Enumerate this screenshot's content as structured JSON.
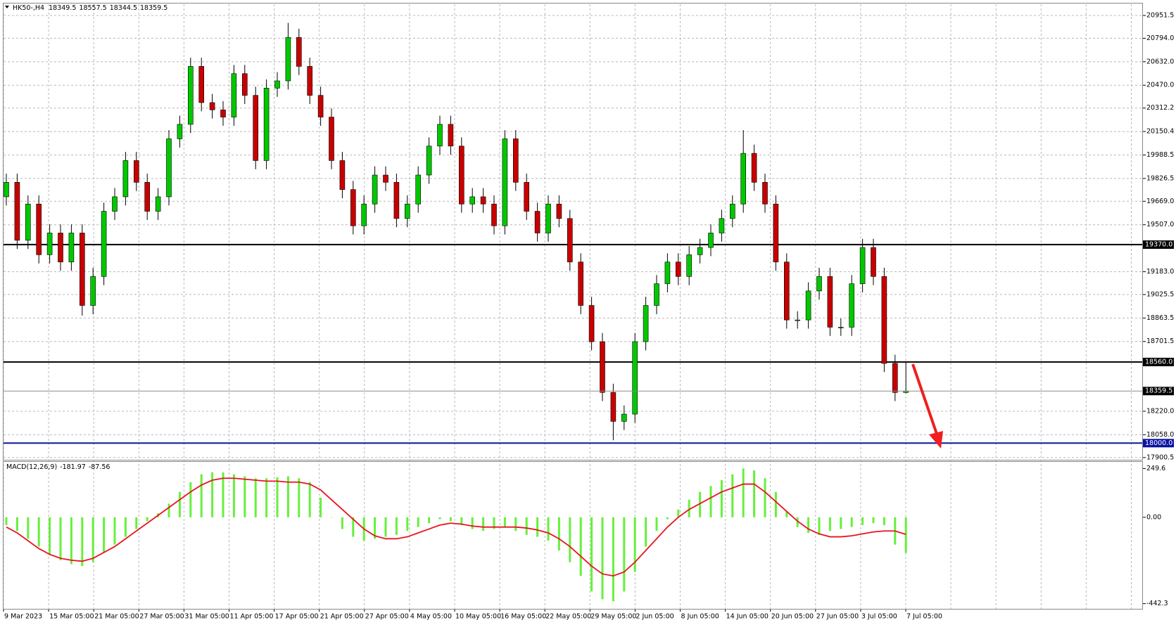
{
  "chart_data": [
    {
      "type": "candlestick",
      "title": "HK50-,H4",
      "open": [
        19700,
        19800,
        19400,
        19650,
        19300,
        19450,
        19250,
        19450,
        18950,
        19150,
        19600,
        19700,
        19950,
        19800,
        19600,
        19700,
        20100,
        20200,
        20600,
        20350,
        20300,
        20250,
        20550,
        20400,
        19950,
        20450,
        20500,
        20800,
        20600,
        20400,
        20250,
        19950,
        19750,
        19500,
        19650,
        19850,
        19800,
        19550,
        19650,
        19850,
        20050,
        20200,
        20050,
        19650,
        19700,
        19650,
        19500,
        20100,
        19800,
        19600,
        19450,
        19650,
        19550,
        19250,
        18950,
        18700,
        18350,
        18150,
        18200,
        18700,
        18950,
        19100,
        19250,
        19150,
        19300,
        19350,
        19450,
        19550,
        19650,
        20000,
        19800,
        19650,
        19250,
        18850,
        18850,
        19050,
        19150,
        18800,
        18800,
        19100,
        19350,
        19150,
        18550,
        18349.5
      ],
      "high": [
        19860,
        19860,
        19710,
        19710,
        19510,
        19510,
        19510,
        19510,
        19210,
        19660,
        19760,
        20010,
        20010,
        19860,
        19760,
        20160,
        20260,
        20660,
        20660,
        20410,
        20360,
        20610,
        20610,
        20460,
        20510,
        20560,
        20900,
        20860,
        20660,
        20460,
        20310,
        20010,
        19810,
        19710,
        19910,
        19910,
        19860,
        19710,
        19910,
        20110,
        20260,
        20260,
        20110,
        19760,
        19760,
        19710,
        20160,
        20160,
        19860,
        19660,
        19710,
        19710,
        19610,
        19310,
        19010,
        18760,
        18410,
        18260,
        18760,
        19010,
        19160,
        19310,
        19310,
        19360,
        19410,
        19510,
        19610,
        19710,
        20160,
        20060,
        19860,
        19710,
        19310,
        18910,
        19110,
        19210,
        19210,
        18860,
        19160,
        19410,
        19410,
        19210,
        18610,
        18557.5
      ],
      "low": [
        19640,
        19340,
        19340,
        19240,
        19240,
        19190,
        19190,
        18880,
        18890,
        19090,
        19540,
        19640,
        19740,
        19540,
        19540,
        19640,
        20040,
        20140,
        20290,
        20240,
        20190,
        20190,
        20340,
        19890,
        19890,
        20390,
        20440,
        20540,
        20340,
        20190,
        19890,
        19690,
        19440,
        19440,
        19590,
        19740,
        19490,
        19490,
        19590,
        19790,
        19990,
        19990,
        19590,
        19590,
        19590,
        19440,
        19440,
        19740,
        19540,
        19390,
        19390,
        19490,
        19190,
        18890,
        18640,
        18290,
        18020,
        18090,
        18140,
        18640,
        18890,
        19040,
        19090,
        19090,
        19240,
        19290,
        19390,
        19490,
        19590,
        19740,
        19590,
        19190,
        18790,
        18790,
        18790,
        18990,
        18740,
        18740,
        18740,
        19040,
        19090,
        18490,
        18290,
        18344.5
      ],
      "close": [
        19800,
        19400,
        19650,
        19300,
        19450,
        19250,
        19450,
        18950,
        19150,
        19600,
        19700,
        19950,
        19800,
        19600,
        19700,
        20100,
        20200,
        20600,
        20350,
        20300,
        20250,
        20550,
        20400,
        19950,
        20450,
        20500,
        20800,
        20600,
        20400,
        20250,
        19950,
        19750,
        19500,
        19650,
        19850,
        19800,
        19550,
        19650,
        19850,
        20050,
        20200,
        20050,
        19650,
        19700,
        19650,
        19500,
        20100,
        19800,
        19600,
        19450,
        19650,
        19550,
        19250,
        18950,
        18700,
        18350,
        18150,
        18200,
        18700,
        18950,
        19100,
        19250,
        19150,
        19300,
        19350,
        19450,
        19550,
        19650,
        20000,
        19800,
        19650,
        19250,
        18850,
        18850,
        19050,
        19150,
        18800,
        18800,
        19100,
        19350,
        19150,
        18550,
        18349.5,
        18359.5
      ],
      "up_color": "#00c800",
      "down_color": "#c80000",
      "ylim": [
        17885,
        21029
      ],
      "yticks": [
        20951.5,
        {
          "value": 20794,
          "label": "20794.0"
        },
        {
          "value": 20632,
          "label": "20632.0"
        },
        {
          "value": 20470,
          "label": "20470.0"
        },
        20312.2,
        20150.4,
        19988.5,
        19826.5,
        {
          "value": 19669,
          "label": "19669.0"
        },
        {
          "value": 19507,
          "label": "19507.0"
        },
        {
          "value": 19183,
          "label": "19183.0"
        },
        19025.5,
        18863.5,
        18701.5,
        {
          "value": 18220,
          "label": "18220.0"
        },
        {
          "value": 18058,
          "label": "18058.0"
        },
        17900.5
      ],
      "levels": [
        {
          "value": 19370,
          "label": "19370.0",
          "color": "#000000"
        },
        {
          "value": 18560,
          "label": "18560.0",
          "color": "#000000"
        },
        {
          "value": 18000,
          "label": "18000.0",
          "color": "#0a14a0"
        }
      ],
      "time_labels": [
        "9 Mar 2023",
        "15 Mar 05:00",
        "21 Mar 05:00",
        "27 Mar 05:00",
        "31 Mar 05:00",
        "11 Apr 05:00",
        "17 Apr 05:00",
        "21 Apr 05:00",
        "27 Apr 05:00",
        "4 May 05:00",
        "10 May 05:00",
        "16 May 05:00",
        "22 May 05:00",
        "29 May 05:00",
        "2 Jun 05:00",
        "8 Jun 05:00",
        "14 Jun 05:00",
        "20 Jun 05:00",
        "27 Jun 05:00",
        "3 Jul 05:00",
        "7 Jul 05:00"
      ],
      "grid": true
    },
    {
      "type": "macd",
      "title": "MACD(12,26,9)",
      "histogram": {
        "color": "#66f03c",
        "values": [
          -40,
          -70,
          -110,
          -150,
          -190,
          -220,
          -240,
          -250,
          -230,
          -180,
          -140,
          -100,
          -60,
          -20,
          20,
          70,
          130,
          180,
          220,
          230,
          230,
          220,
          210,
          200,
          200,
          205,
          210,
          200,
          180,
          100,
          0,
          -60,
          -100,
          -120,
          -110,
          -100,
          -90,
          -70,
          -50,
          -30,
          -10,
          -20,
          -40,
          -60,
          -70,
          -60,
          -50,
          -70,
          -90,
          -100,
          -120,
          -170,
          -230,
          -300,
          -380,
          -420,
          -430,
          -380,
          -280,
          -150,
          -70,
          -10,
          40,
          90,
          130,
          160,
          190,
          220,
          250,
          240,
          200,
          130,
          30,
          -50,
          -80,
          -90,
          -70,
          -60,
          -50,
          -40,
          -30,
          -40,
          -140,
          -181.97
        ]
      },
      "signal": {
        "color": "#e8141e",
        "values": [
          -50,
          -80,
          -120,
          -160,
          -190,
          -210,
          -220,
          -225,
          -210,
          -180,
          -150,
          -110,
          -70,
          -30,
          10,
          50,
          90,
          130,
          165,
          190,
          200,
          200,
          195,
          190,
          185,
          185,
          180,
          180,
          170,
          140,
          90,
          40,
          -10,
          -60,
          -95,
          -110,
          -110,
          -100,
          -80,
          -60,
          -40,
          -30,
          -35,
          -45,
          -50,
          -50,
          -50,
          -50,
          -55,
          -65,
          -80,
          -110,
          -150,
          -200,
          -250,
          -290,
          -300,
          -280,
          -230,
          -170,
          -110,
          -50,
          0,
          40,
          70,
          100,
          130,
          150,
          170,
          170,
          130,
          80,
          30,
          -20,
          -60,
          -85,
          -100,
          -100,
          -95,
          -85,
          -75,
          -70,
          -70,
          -87.56
        ]
      },
      "ylim": [
        -468.8,
        283.6
      ],
      "yticks": [
        249.6,
        {
          "value": 0,
          "label": "0.00"
        },
        -442.3
      ]
    }
  ]
}
